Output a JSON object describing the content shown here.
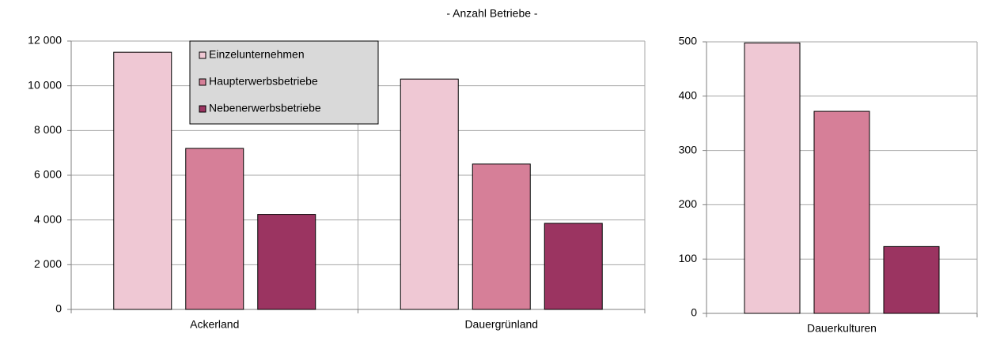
{
  "chart_data": [
    {
      "type": "bar",
      "title": "- Anzahl Betriebe -",
      "categories": [
        "Ackerland",
        "Dauergrünland"
      ],
      "series": [
        {
          "name": "Einzelunternehmen",
          "color": "#efc8d4",
          "values": [
            11500,
            10300
          ]
        },
        {
          "name": "Haupterwerbsbetriebe",
          "color": "#d67f98",
          "values": [
            7200,
            6500
          ]
        },
        {
          "name": "Nebenerwerbsbetriebe",
          "color": "#9b3461",
          "values": [
            4250,
            3850
          ]
        }
      ],
      "ylim": [
        0,
        12000
      ],
      "yticks": [
        0,
        {
          "value": 2000,
          "label": "2 000"
        },
        {
          "value": 4000,
          "label": "4 000"
        },
        {
          "value": 6000,
          "label": "6 000"
        },
        {
          "value": 8000,
          "label": "8 000"
        },
        {
          "value": 10000,
          "label": "10 000"
        },
        {
          "value": 12000,
          "label": "12 000"
        }
      ],
      "grid": true
    },
    {
      "type": "bar",
      "categories": [
        "Dauerkulturen"
      ],
      "series": [
        {
          "name": "Einzelunternehmen",
          "color": "#efc8d4",
          "values": [
            498
          ]
        },
        {
          "name": "Haupterwerbsbetriebe",
          "color": "#d67f98",
          "values": [
            372
          ]
        },
        {
          "name": "Nebenerwerbsbetriebe",
          "color": "#9b3461",
          "values": [
            123
          ]
        }
      ],
      "ylim": [
        0,
        500
      ],
      "yticks": [
        0,
        100,
        200,
        300,
        400,
        500
      ],
      "grid": true
    }
  ]
}
